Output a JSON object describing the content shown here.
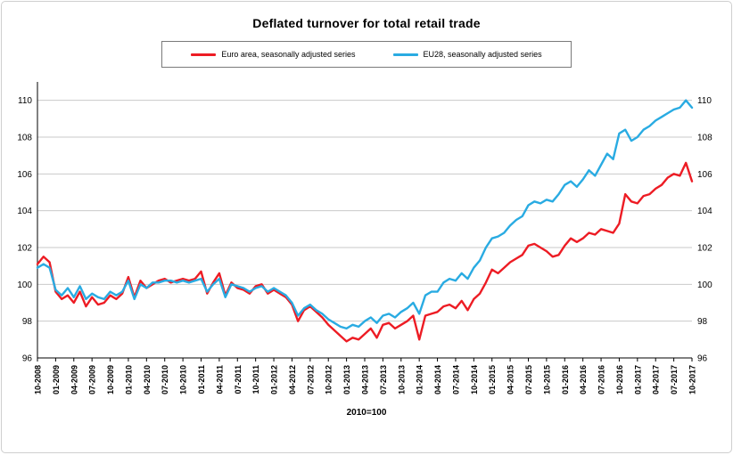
{
  "chart_data": {
    "type": "line",
    "title": "Deflated turnover for total retail trade",
    "footnote": "2010=100",
    "ylim": [
      96,
      111
    ],
    "yticks": [
      96,
      98,
      100,
      102,
      104,
      106,
      108,
      110
    ],
    "grid": "horizontal",
    "legend_position": "top",
    "x_tick_every": 3,
    "x_tick_labels": [
      "10-2008",
      "01-2009",
      "04-2009",
      "07-2009",
      "10-2009",
      "01-2010",
      "04-2010",
      "07-2010",
      "10-2010",
      "01-2011",
      "04-2011",
      "07-2011",
      "10-2011",
      "01-2012",
      "04-2012",
      "07-2012",
      "10-2012",
      "01-2013",
      "04-2013",
      "07-2013",
      "10-2013",
      "01-2014",
      "04-2014",
      "07-2014",
      "10-2014",
      "01-2015",
      "04-2015",
      "07-2015",
      "10-2015",
      "01-2016",
      "04-2016",
      "07-2016",
      "10-2016",
      "01-2017",
      "04-2017",
      "07-2017",
      "10-2017"
    ],
    "series": [
      {
        "name": "Euro area, seasonally adjusted series",
        "color": "#ed1c24",
        "values": [
          101.1,
          101.5,
          101.2,
          99.6,
          99.2,
          99.4,
          99.0,
          99.6,
          98.8,
          99.3,
          98.9,
          99.0,
          99.4,
          99.2,
          99.5,
          100.4,
          99.3,
          100.2,
          99.8,
          100.0,
          100.2,
          100.3,
          100.1,
          100.2,
          100.3,
          100.2,
          100.3,
          100.7,
          99.5,
          100.1,
          100.6,
          99.4,
          100.1,
          99.8,
          99.7,
          99.5,
          99.9,
          100.0,
          99.5,
          99.7,
          99.5,
          99.3,
          98.9,
          98.0,
          98.6,
          98.8,
          98.5,
          98.2,
          97.8,
          97.5,
          97.2,
          96.9,
          97.1,
          97.0,
          97.3,
          97.6,
          97.1,
          97.8,
          97.9,
          97.6,
          97.8,
          98.0,
          98.3,
          97.0,
          98.3,
          98.4,
          98.5,
          98.8,
          98.9,
          98.7,
          99.1,
          98.6,
          99.2,
          99.5,
          100.1,
          100.8,
          100.6,
          100.9,
          101.2,
          101.4,
          101.6,
          102.1,
          102.2,
          102.0,
          101.8,
          101.5,
          101.6,
          102.1,
          102.5,
          102.3,
          102.5,
          102.8,
          102.7,
          103.0,
          102.9,
          102.8,
          103.3,
          104.9,
          104.5,
          104.4,
          104.8,
          104.9,
          105.2,
          105.4,
          105.8,
          106.0,
          105.9,
          106.6,
          105.6
        ]
      },
      {
        "name": "EU28, seasonally adjusted series",
        "color": "#29abe2",
        "values": [
          100.9,
          101.1,
          100.9,
          99.7,
          99.4,
          99.8,
          99.3,
          99.9,
          99.2,
          99.5,
          99.3,
          99.2,
          99.6,
          99.4,
          99.6,
          100.2,
          99.2,
          100.0,
          99.8,
          100.1,
          100.1,
          100.2,
          100.2,
          100.1,
          100.2,
          100.1,
          100.2,
          100.3,
          99.6,
          100.0,
          100.3,
          99.3,
          100.0,
          99.9,
          99.8,
          99.6,
          99.8,
          99.9,
          99.6,
          99.8,
          99.6,
          99.4,
          99.0,
          98.3,
          98.7,
          98.9,
          98.6,
          98.4,
          98.1,
          97.9,
          97.7,
          97.6,
          97.8,
          97.7,
          98.0,
          98.2,
          97.9,
          98.3,
          98.4,
          98.2,
          98.5,
          98.7,
          99.0,
          98.4,
          99.4,
          99.6,
          99.6,
          100.1,
          100.3,
          100.2,
          100.6,
          100.3,
          100.9,
          101.3,
          102.0,
          102.5,
          102.6,
          102.8,
          103.2,
          103.5,
          103.7,
          104.3,
          104.5,
          104.4,
          104.6,
          104.5,
          104.9,
          105.4,
          105.6,
          105.3,
          105.7,
          106.2,
          105.9,
          106.5,
          107.1,
          106.8,
          108.2,
          108.4,
          107.8,
          108.0,
          108.4,
          108.6,
          108.9,
          109.1,
          109.3,
          109.5,
          109.6,
          110.0,
          109.6
        ]
      }
    ]
  }
}
